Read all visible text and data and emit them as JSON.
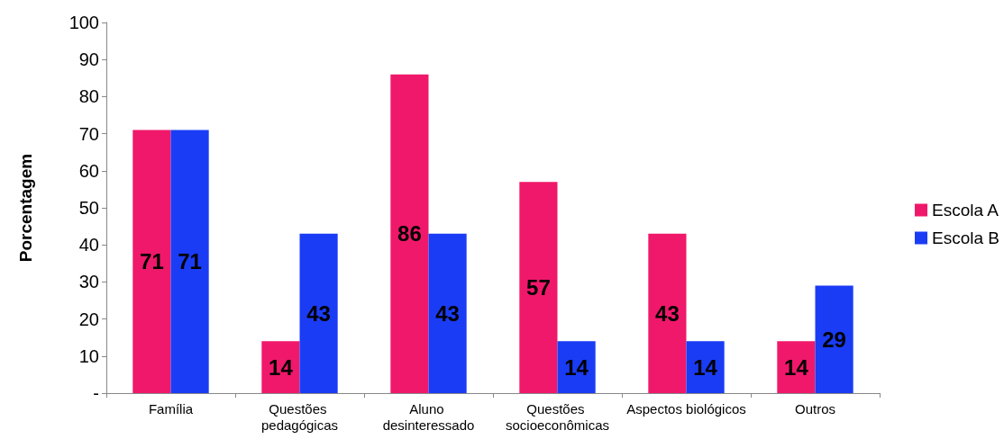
{
  "chart_data": {
    "type": "bar",
    "ylabel": "Porcentagem",
    "categories": [
      "Família",
      "Questões pedagógicas",
      "Aluno desinteressado",
      "Questões socioeconômicas",
      "Aspectos biológicos",
      "Outros"
    ],
    "series": [
      {
        "name": "Escola A",
        "color": "#f0186a",
        "values": [
          71,
          14,
          86,
          57,
          43,
          14
        ]
      },
      {
        "name": "Escola B",
        "color": "#1a3cf5",
        "values": [
          71,
          43,
          43,
          14,
          14,
          29
        ]
      }
    ],
    "ylim": [
      0,
      100
    ],
    "yticks": [
      {
        "value": 0,
        "label": "-"
      },
      10,
      20,
      30,
      40,
      50,
      60,
      70,
      80,
      90,
      100
    ],
    "data_labels": true,
    "grid": false,
    "legend": "right"
  }
}
